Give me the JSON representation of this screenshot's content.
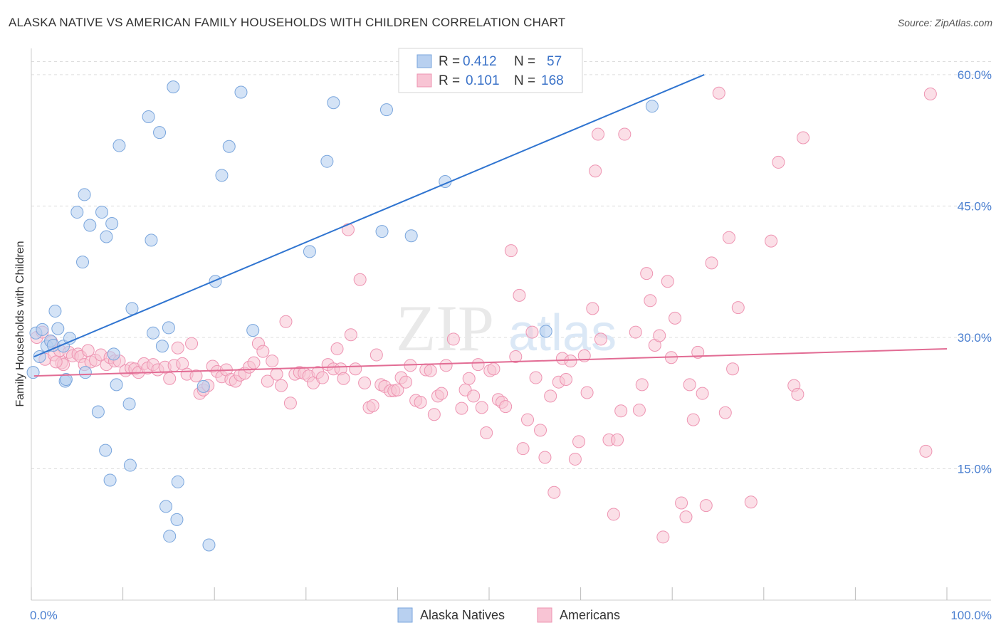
{
  "title": "ALASKA NATIVE VS AMERICAN FAMILY HOUSEHOLDS WITH CHILDREN CORRELATION CHART",
  "source": "Source: ZipAtlas.com",
  "watermark": {
    "zip": "ZIP",
    "atlas": "atlas"
  },
  "legend_top": {
    "r_label": "R =",
    "n_label": "N =",
    "rows": [
      {
        "r": "0.412",
        "n": "57"
      },
      {
        "r": "0.101",
        "n": "168"
      }
    ]
  },
  "chart_data": {
    "type": "scatter",
    "title": "ALASKA NATIVE VS AMERICAN FAMILY HOUSEHOLDS WITH CHILDREN CORRELATION CHART",
    "xlabel": "",
    "ylabel": "Family Households with Children",
    "xlim": [
      0,
      100
    ],
    "ylim": [
      0,
      63
    ],
    "x_tick_labels": [
      {
        "value": 0,
        "label": "0.0%"
      },
      {
        "value": 100,
        "label": "100.0%"
      }
    ],
    "y_tick_labels": [
      {
        "value": 15,
        "label": "15.0%"
      },
      {
        "value": 30,
        "label": "30.0%"
      },
      {
        "value": 45,
        "label": "45.0%"
      },
      {
        "value": 60,
        "label": "60.0%"
      }
    ],
    "colors": {
      "alaska_fill": "#b8d0f0",
      "alaska_stroke": "#7aa6dd",
      "alaska_line": "#2f74d0",
      "american_fill": "#f8c4d4",
      "american_stroke": "#ee94b2",
      "american_line": "#e26c94",
      "tick_label": "#4a7fd0",
      "grid": "#dddddd"
    },
    "series": [
      {
        "name": "Alaska Natives",
        "r": 0.412,
        "n": 57,
        "trend": {
          "x": [
            0.3,
            73.5
          ],
          "y": [
            27.8,
            60.0
          ]
        },
        "points": [
          [
            0.2,
            26.0
          ],
          [
            0.5,
            30.5
          ],
          [
            0.9,
            27.8
          ],
          [
            1.2,
            30.9
          ],
          [
            1.7,
            29.0
          ],
          [
            2.1,
            29.6
          ],
          [
            2.4,
            29.1
          ],
          [
            2.6,
            33.0
          ],
          [
            2.9,
            31.0
          ],
          [
            3.5,
            29.0
          ],
          [
            3.7,
            25.0
          ],
          [
            3.8,
            25.2
          ],
          [
            4.2,
            29.9
          ],
          [
            5.0,
            44.3
          ],
          [
            5.6,
            38.6
          ],
          [
            5.8,
            46.3
          ],
          [
            5.9,
            26.0
          ],
          [
            6.4,
            42.8
          ],
          [
            7.3,
            21.5
          ],
          [
            7.7,
            44.3
          ],
          [
            8.1,
            17.1
          ],
          [
            8.2,
            41.5
          ],
          [
            8.6,
            13.7
          ],
          [
            8.8,
            43.0
          ],
          [
            9.0,
            28.1
          ],
          [
            9.3,
            24.6
          ],
          [
            9.6,
            51.9
          ],
          [
            10.7,
            22.4
          ],
          [
            10.8,
            15.4
          ],
          [
            11.0,
            33.3
          ],
          [
            12.8,
            55.2
          ],
          [
            13.1,
            41.1
          ],
          [
            13.3,
            30.5
          ],
          [
            14.0,
            53.4
          ],
          [
            14.3,
            29.0
          ],
          [
            14.7,
            10.7
          ],
          [
            15.0,
            31.1
          ],
          [
            15.1,
            7.3
          ],
          [
            15.5,
            58.6
          ],
          [
            15.9,
            9.2
          ],
          [
            16.0,
            13.5
          ],
          [
            18.8,
            24.4
          ],
          [
            19.4,
            6.3
          ],
          [
            20.1,
            36.4
          ],
          [
            20.8,
            48.5
          ],
          [
            21.6,
            51.8
          ],
          [
            22.9,
            58.0
          ],
          [
            24.2,
            30.8
          ],
          [
            30.4,
            39.8
          ],
          [
            32.3,
            50.1
          ],
          [
            33.0,
            56.8
          ],
          [
            38.3,
            42.1
          ],
          [
            38.8,
            56.0
          ],
          [
            41.5,
            41.6
          ],
          [
            45.2,
            47.8
          ],
          [
            56.2,
            30.7
          ],
          [
            67.8,
            56.4
          ]
        ]
      },
      {
        "name": "Americans",
        "r": 0.101,
        "n": 168,
        "trend": {
          "x": [
            0.3,
            100
          ],
          "y": [
            25.6,
            28.7
          ]
        },
        "points": [
          [
            0.6,
            30.0
          ],
          [
            1.2,
            30.6
          ],
          [
            1.5,
            27.5
          ],
          [
            2.2,
            29.5
          ],
          [
            2.5,
            28.0
          ],
          [
            3.1,
            28.5
          ],
          [
            3.3,
            27.1
          ],
          [
            3.5,
            26.9
          ],
          [
            4.1,
            28.3
          ],
          [
            4.5,
            27.9
          ],
          [
            5.1,
            28.1
          ],
          [
            5.4,
            27.8
          ],
          [
            5.8,
            26.9
          ],
          [
            6.2,
            28.5
          ],
          [
            6.5,
            27.2
          ],
          [
            7.0,
            27.4
          ],
          [
            7.6,
            28.0
          ],
          [
            8.2,
            26.9
          ],
          [
            8.6,
            27.7
          ],
          [
            9.1,
            27.3
          ],
          [
            9.6,
            27.3
          ],
          [
            10.3,
            26.2
          ],
          [
            10.9,
            26.5
          ],
          [
            11.3,
            26.4
          ],
          [
            11.7,
            26.0
          ],
          [
            12.3,
            27.0
          ],
          [
            12.7,
            26.5
          ],
          [
            13.3,
            26.9
          ],
          [
            13.8,
            26.3
          ],
          [
            14.6,
            26.6
          ],
          [
            15.1,
            25.3
          ],
          [
            15.6,
            26.8
          ],
          [
            16.0,
            28.8
          ],
          [
            16.5,
            27.0
          ],
          [
            17.0,
            25.8
          ],
          [
            17.5,
            29.3
          ],
          [
            18.0,
            25.6
          ],
          [
            18.4,
            23.6
          ],
          [
            18.8,
            24.0
          ],
          [
            19.3,
            24.5
          ],
          [
            19.8,
            26.7
          ],
          [
            20.3,
            26.1
          ],
          [
            20.8,
            25.5
          ],
          [
            21.3,
            26.3
          ],
          [
            21.8,
            25.2
          ],
          [
            22.3,
            25.0
          ],
          [
            22.8,
            25.7
          ],
          [
            23.3,
            25.9
          ],
          [
            23.8,
            26.6
          ],
          [
            24.3,
            27.1
          ],
          [
            24.8,
            29.3
          ],
          [
            25.3,
            28.4
          ],
          [
            25.8,
            25.0
          ],
          [
            26.3,
            27.3
          ],
          [
            26.8,
            25.8
          ],
          [
            27.3,
            24.5
          ],
          [
            27.8,
            31.8
          ],
          [
            28.3,
            22.5
          ],
          [
            28.8,
            25.8
          ],
          [
            29.3,
            26.0
          ],
          [
            29.8,
            25.9
          ],
          [
            30.3,
            25.6
          ],
          [
            30.8,
            24.8
          ],
          [
            31.3,
            26.0
          ],
          [
            31.8,
            25.4
          ],
          [
            32.4,
            26.9
          ],
          [
            33.0,
            26.4
          ],
          [
            33.4,
            28.7
          ],
          [
            33.8,
            26.4
          ],
          [
            34.1,
            25.3
          ],
          [
            34.6,
            42.3
          ],
          [
            34.9,
            30.3
          ],
          [
            35.4,
            26.4
          ],
          [
            35.9,
            36.6
          ],
          [
            36.4,
            24.8
          ],
          [
            36.9,
            22.0
          ],
          [
            37.3,
            22.2
          ],
          [
            37.7,
            28.0
          ],
          [
            38.2,
            24.6
          ],
          [
            38.6,
            24.4
          ],
          [
            39.2,
            23.9
          ],
          [
            39.6,
            23.9
          ],
          [
            40.0,
            24.0
          ],
          [
            40.4,
            25.4
          ],
          [
            40.9,
            24.9
          ],
          [
            41.4,
            26.8
          ],
          [
            42.0,
            22.8
          ],
          [
            42.5,
            22.6
          ],
          [
            43.1,
            26.3
          ],
          [
            43.6,
            26.2
          ],
          [
            44.0,
            21.2
          ],
          [
            44.4,
            23.3
          ],
          [
            44.8,
            23.6
          ],
          [
            45.3,
            26.8
          ],
          [
            46.1,
            29.8
          ],
          [
            47.0,
            21.9
          ],
          [
            47.4,
            24.0
          ],
          [
            47.8,
            25.3
          ],
          [
            48.3,
            23.3
          ],
          [
            48.8,
            26.9
          ],
          [
            49.2,
            22.0
          ],
          [
            49.7,
            19.1
          ],
          [
            50.1,
            26.2
          ],
          [
            50.5,
            26.4
          ],
          [
            51.0,
            22.9
          ],
          [
            51.4,
            22.6
          ],
          [
            51.8,
            22.1
          ],
          [
            52.4,
            39.9
          ],
          [
            52.9,
            27.8
          ],
          [
            53.3,
            34.8
          ],
          [
            53.7,
            17.3
          ],
          [
            54.2,
            20.6
          ],
          [
            54.7,
            30.6
          ],
          [
            55.1,
            25.4
          ],
          [
            55.6,
            19.4
          ],
          [
            56.1,
            16.3
          ],
          [
            56.7,
            23.3
          ],
          [
            57.1,
            12.3
          ],
          [
            57.6,
            24.9
          ],
          [
            58.0,
            27.6
          ],
          [
            58.4,
            25.2
          ],
          [
            58.9,
            27.3
          ],
          [
            59.4,
            16.1
          ],
          [
            59.8,
            18.1
          ],
          [
            60.4,
            27.9
          ],
          [
            60.7,
            23.7
          ],
          [
            61.3,
            33.3
          ],
          [
            61.6,
            49.0
          ],
          [
            61.9,
            53.2
          ],
          [
            62.2,
            29.8
          ],
          [
            63.1,
            18.3
          ],
          [
            63.6,
            9.8
          ],
          [
            64.0,
            18.3
          ],
          [
            64.4,
            21.6
          ],
          [
            64.8,
            53.2
          ],
          [
            66.0,
            30.6
          ],
          [
            66.4,
            21.7
          ],
          [
            66.7,
            24.6
          ],
          [
            67.2,
            37.3
          ],
          [
            67.6,
            34.2
          ],
          [
            68.1,
            29.1
          ],
          [
            68.6,
            30.2
          ],
          [
            69.0,
            7.2
          ],
          [
            69.5,
            36.4
          ],
          [
            69.9,
            27.7
          ],
          [
            70.3,
            32.2
          ],
          [
            71.0,
            11.1
          ],
          [
            71.5,
            9.5
          ],
          [
            71.9,
            24.6
          ],
          [
            72.3,
            20.6
          ],
          [
            72.8,
            28.3
          ],
          [
            73.3,
            23.6
          ],
          [
            73.7,
            10.8
          ],
          [
            74.3,
            38.5
          ],
          [
            75.1,
            57.9
          ],
          [
            75.8,
            21.4
          ],
          [
            76.2,
            41.4
          ],
          [
            76.6,
            26.4
          ],
          [
            77.2,
            33.4
          ],
          [
            78.6,
            11.2
          ],
          [
            80.8,
            41.0
          ],
          [
            81.6,
            50.0
          ],
          [
            83.3,
            24.5
          ],
          [
            83.7,
            23.5
          ],
          [
            84.3,
            52.8
          ],
          [
            97.7,
            17.0
          ],
          [
            98.2,
            57.8
          ],
          [
            2.7,
            27.2
          ]
        ]
      }
    ]
  },
  "legend_bottom": [
    {
      "label": "Alaska Natives"
    },
    {
      "label": "Americans"
    }
  ]
}
